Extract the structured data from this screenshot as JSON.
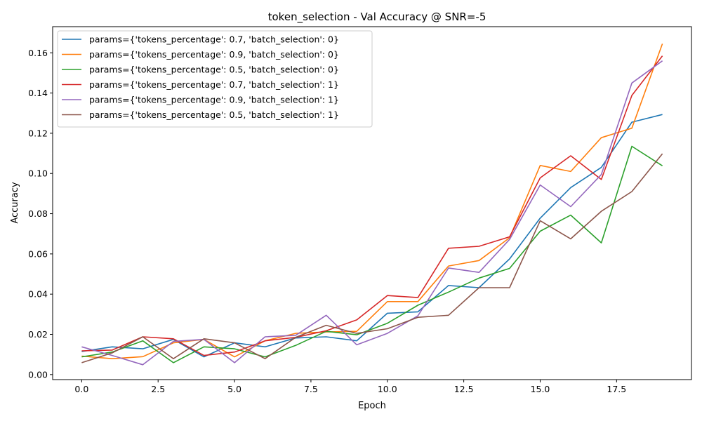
{
  "chart_data": {
    "type": "line",
    "title": "token_selection - Val Accuracy @ SNR=-5",
    "xlabel": "Epoch",
    "ylabel": "Accuracy",
    "xlim": [
      -0.95,
      19.95
    ],
    "ylim": [
      -0.0025,
      0.173
    ],
    "xticks": [
      0.0,
      2.5,
      5.0,
      7.5,
      10.0,
      12.5,
      15.0,
      17.5
    ],
    "xtick_labels": [
      "0.0",
      "2.5",
      "5.0",
      "7.5",
      "10.0",
      "12.5",
      "15.0",
      "17.5"
    ],
    "yticks": [
      0.0,
      0.02,
      0.04,
      0.06,
      0.08,
      0.1,
      0.12,
      0.14,
      0.16
    ],
    "ytick_labels": [
      "0.00",
      "0.02",
      "0.04",
      "0.06",
      "0.08",
      "0.10",
      "0.12",
      "0.14",
      "0.16"
    ],
    "grid": false,
    "legend_position": "top-left",
    "x": [
      0,
      1,
      2,
      3,
      4,
      5,
      6,
      7,
      8,
      9,
      10,
      11,
      12,
      13,
      14,
      15,
      16,
      17,
      18,
      19
    ],
    "series": [
      {
        "name": "params={'tokens_percentage': 0.7, 'batch_selection': 0}",
        "color": "#1f77b4",
        "values": [
          0.0115,
          0.0138,
          0.0128,
          0.0175,
          0.0088,
          0.0158,
          0.0138,
          0.0182,
          0.0188,
          0.0168,
          0.0305,
          0.0312,
          0.0443,
          0.0432,
          0.0575,
          0.0778,
          0.093,
          0.103,
          0.1255,
          0.1293
        ]
      },
      {
        "name": "params={'tokens_percentage': 0.9, 'batch_selection': 0}",
        "color": "#ff7f0e",
        "values": [
          0.0092,
          0.0079,
          0.0089,
          0.0158,
          0.0175,
          0.0088,
          0.0168,
          0.0205,
          0.0212,
          0.0215,
          0.0363,
          0.0363,
          0.054,
          0.0567,
          0.068,
          0.104,
          0.101,
          0.1178,
          0.1225,
          0.1645
        ]
      },
      {
        "name": "params={'tokens_percentage': 0.5, 'batch_selection': 0}",
        "color": "#2ca02c",
        "values": [
          0.0088,
          0.0112,
          0.0168,
          0.0059,
          0.0138,
          0.0128,
          0.0088,
          0.0145,
          0.0215,
          0.0198,
          0.0255,
          0.0345,
          0.041,
          0.048,
          0.0528,
          0.0713,
          0.0793,
          0.0655,
          0.1135,
          0.1038
        ]
      },
      {
        "name": "params={'tokens_percentage': 0.7, 'batch_selection': 1}",
        "color": "#d62728",
        "values": [
          0.0118,
          0.0122,
          0.0188,
          0.0178,
          0.0095,
          0.0112,
          0.0168,
          0.0185,
          0.0218,
          0.0272,
          0.0393,
          0.0383,
          0.0628,
          0.0638,
          0.0685,
          0.0978,
          0.1088,
          0.097,
          0.1388,
          0.1585
        ]
      },
      {
        "name": "params={'tokens_percentage': 0.9, 'batch_selection': 1}",
        "color": "#9467bd",
        "values": [
          0.0138,
          0.0095,
          0.0049,
          0.0165,
          0.0175,
          0.0059,
          0.0188,
          0.0195,
          0.0295,
          0.0148,
          0.0205,
          0.0292,
          0.053,
          0.0508,
          0.0672,
          0.0943,
          0.0835,
          0.0995,
          0.145,
          0.156
        ]
      },
      {
        "name": "params={'tokens_percentage': 0.5, 'batch_selection': 1}",
        "color": "#8c564b",
        "values": [
          0.0059,
          0.0108,
          0.0188,
          0.0079,
          0.0178,
          0.0158,
          0.0079,
          0.0185,
          0.0245,
          0.0205,
          0.0228,
          0.0285,
          0.0295,
          0.0432,
          0.0432,
          0.0765,
          0.0675,
          0.0812,
          0.091,
          0.1098
        ]
      }
    ]
  }
}
